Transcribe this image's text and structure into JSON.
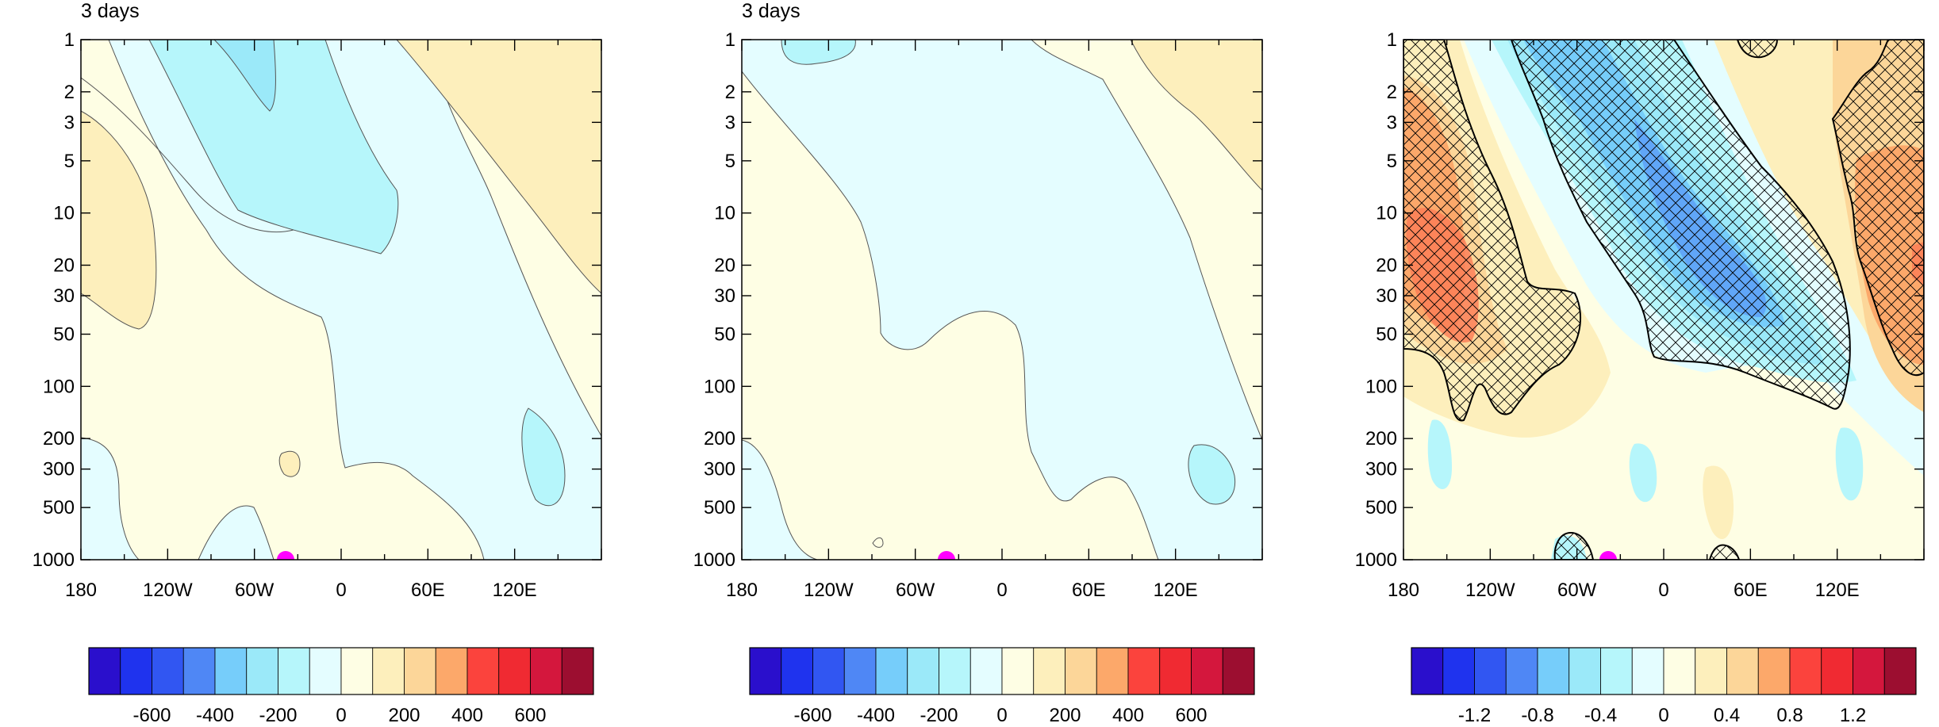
{
  "colors": {
    "palette": [
      "#2a0fcc",
      "#1f33ee",
      "#3156f2",
      "#4f87f5",
      "#76cdfa",
      "#9be9f9",
      "#b6f6fb",
      "#e4fdff",
      "#fefee4",
      "#fdefbc",
      "#fcd699",
      "#fca86a",
      "#fb433d",
      "#f02a32",
      "#d4173d",
      "#9c0e30"
    ],
    "hatch": "#000000",
    "marker": "#ff00ff"
  },
  "chart_data": [
    {
      "type": "heatmap",
      "panel": "left",
      "title": "3 days",
      "x_ticks": [
        "180",
        "120W",
        "60W",
        "0",
        "60E",
        "120E"
      ],
      "x_range": [
        "180",
        "180"
      ],
      "y_ticks": [
        "1",
        "2",
        "3",
        "5",
        "10",
        "20",
        "30",
        "50",
        "100",
        "200",
        "300",
        "500",
        "1000"
      ],
      "y_scale": "log (inverted)",
      "colorbar": {
        "labels": [
          "-600",
          "-400",
          "-200",
          "0",
          "200",
          "400",
          "600"
        ],
        "levels": [
          -700,
          -600,
          -500,
          -400,
          -300,
          -200,
          -100,
          0,
          100,
          200,
          300,
          400,
          500,
          600,
          700
        ]
      },
      "marker": {
        "lon": "37W",
        "level": "1000"
      }
    },
    {
      "type": "heatmap",
      "panel": "middle",
      "title": "3 days",
      "x_ticks": [
        "180",
        "120W",
        "60W",
        "0",
        "60E",
        "120E"
      ],
      "x_range": [
        "180",
        "180"
      ],
      "y_ticks": [
        "1",
        "2",
        "3",
        "5",
        "10",
        "20",
        "30",
        "50",
        "100",
        "200",
        "300",
        "500",
        "1000"
      ],
      "y_scale": "log (inverted)",
      "colorbar": {
        "labels": [
          "-600",
          "-400",
          "-200",
          "0",
          "200",
          "400",
          "600"
        ],
        "levels": [
          -700,
          -600,
          -500,
          -400,
          -300,
          -200,
          -100,
          0,
          100,
          200,
          300,
          400,
          500,
          600,
          700
        ]
      },
      "marker": {
        "lon": "37W",
        "level": "1000"
      }
    },
    {
      "type": "heatmap",
      "panel": "right",
      "title": "",
      "x_ticks": [
        "180",
        "120W",
        "60W",
        "0",
        "60E",
        "120E"
      ],
      "x_range": [
        "180",
        "180"
      ],
      "y_ticks": [
        "1",
        "2",
        "3",
        "5",
        "10",
        "20",
        "30",
        "50",
        "100",
        "200",
        "300",
        "500",
        "1000"
      ],
      "y_scale": "log (inverted)",
      "colorbar": {
        "labels": [
          "-1.2",
          "-0.8",
          "-0.4",
          "0",
          "0.4",
          "0.8",
          "1.2"
        ],
        "levels": [
          -1.4,
          -1.2,
          -1.0,
          -0.8,
          -0.6,
          -0.4,
          -0.2,
          0,
          0.2,
          0.4,
          0.6,
          0.8,
          1.0,
          1.2,
          1.4
        ]
      },
      "hatching": "significance regions",
      "marker": {
        "lon": "37W",
        "level": "1000"
      }
    }
  ]
}
